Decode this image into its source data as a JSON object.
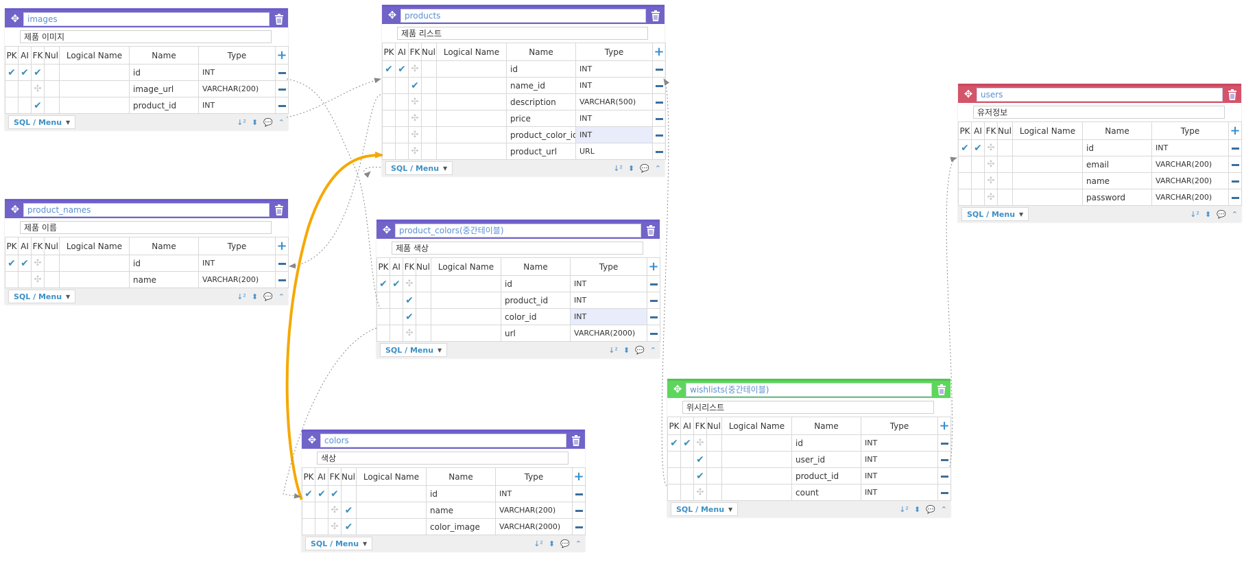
{
  "ui": {
    "sql_menu_label": "SQL / Menu",
    "col_headers": {
      "pk": "PK",
      "ai": "AI",
      "fk": "FK",
      "null": "Null",
      "logical": "Logical Name",
      "name": "Name",
      "type": "Type"
    },
    "colors": {
      "purple": "#7064c8",
      "red": "#d4546a",
      "green": "#5ed65e",
      "relation_line": "#888888",
      "highlight_link": "#f6a800"
    }
  },
  "tables": {
    "images": {
      "name": "images",
      "comment": "제품 이미지",
      "theme": "purple",
      "columns": [
        {
          "name": "id",
          "type": "INT",
          "pk": true,
          "ai": true,
          "fk": true,
          "null": false,
          "fk_ghost": false
        },
        {
          "name": "image_url",
          "type": "VARCHAR(200)",
          "pk": false,
          "ai": false,
          "fk": false,
          "null": false,
          "fk_ghost": true
        },
        {
          "name": "product_id",
          "type": "INT",
          "pk": false,
          "ai": false,
          "fk": true,
          "null": false,
          "fk_ghost": false
        }
      ]
    },
    "product_names": {
      "name": "product_names",
      "comment": "제품 이름",
      "theme": "purple",
      "columns": [
        {
          "name": "id",
          "type": "INT",
          "pk": true,
          "ai": true,
          "fk": false,
          "null": false,
          "fk_ghost": true
        },
        {
          "name": "name",
          "type": "VARCHAR(200)",
          "pk": false,
          "ai": false,
          "fk": false,
          "null": false,
          "fk_ghost": true
        }
      ]
    },
    "products": {
      "name": "products",
      "comment": "제품 리스트",
      "theme": "purple",
      "columns": [
        {
          "name": "id",
          "type": "INT",
          "pk": true,
          "ai": true,
          "fk": false,
          "null": false,
          "fk_ghost": true
        },
        {
          "name": "name_id",
          "type": "INT",
          "pk": false,
          "ai": false,
          "fk": true,
          "null": false,
          "fk_ghost": false
        },
        {
          "name": "description",
          "type": "VARCHAR(500)",
          "pk": false,
          "ai": false,
          "fk": false,
          "null": false,
          "fk_ghost": true
        },
        {
          "name": "price",
          "type": "INT",
          "pk": false,
          "ai": false,
          "fk": false,
          "null": false,
          "fk_ghost": true
        },
        {
          "name": "product_color_id",
          "type": "INT",
          "pk": false,
          "ai": false,
          "fk": false,
          "null": false,
          "fk_ghost": true,
          "highlight": true
        },
        {
          "name": "product_url",
          "type": "URL",
          "pk": false,
          "ai": false,
          "fk": false,
          "null": false,
          "fk_ghost": true
        }
      ]
    },
    "product_colors": {
      "name": "product_colors(중간테이블)",
      "comment": "제품 색상",
      "theme": "purple",
      "columns": [
        {
          "name": "id",
          "type": "INT",
          "pk": true,
          "ai": true,
          "fk": false,
          "null": false,
          "fk_ghost": true
        },
        {
          "name": "product_id",
          "type": "INT",
          "pk": false,
          "ai": false,
          "fk": true,
          "null": false,
          "fk_ghost": false
        },
        {
          "name": "color_id",
          "type": "INT",
          "pk": false,
          "ai": false,
          "fk": true,
          "null": false,
          "fk_ghost": false,
          "highlight": true
        },
        {
          "name": "url",
          "type": "VARCHAR(2000)",
          "pk": false,
          "ai": false,
          "fk": false,
          "null": false,
          "fk_ghost": true
        }
      ]
    },
    "colors": {
      "name": "colors",
      "comment": "색상",
      "theme": "purple",
      "columns": [
        {
          "name": "id",
          "type": "INT",
          "pk": true,
          "ai": true,
          "fk": true,
          "null": false,
          "fk_ghost": false
        },
        {
          "name": "name",
          "type": "VARCHAR(200)",
          "pk": false,
          "ai": false,
          "fk": false,
          "null": true,
          "fk_ghost": true
        },
        {
          "name": "color_image",
          "type": "VARCHAR(2000)",
          "pk": false,
          "ai": false,
          "fk": false,
          "null": true,
          "fk_ghost": true
        }
      ]
    },
    "users": {
      "name": "users",
      "comment": "유저정보",
      "theme": "red",
      "columns": [
        {
          "name": "id",
          "type": "INT",
          "pk": true,
          "ai": true,
          "fk": false,
          "null": false,
          "fk_ghost": true
        },
        {
          "name": "email",
          "type": "VARCHAR(200)",
          "pk": false,
          "ai": false,
          "fk": false,
          "null": false,
          "fk_ghost": true
        },
        {
          "name": "name",
          "type": "VARCHAR(200)",
          "pk": false,
          "ai": false,
          "fk": false,
          "null": false,
          "fk_ghost": true
        },
        {
          "name": "password",
          "type": "VARCHAR(200)",
          "pk": false,
          "ai": false,
          "fk": false,
          "null": false,
          "fk_ghost": true
        }
      ]
    },
    "wishlists": {
      "name": "wishlists(중간테이블)",
      "comment": "위시리스트",
      "theme": "green",
      "columns": [
        {
          "name": "id",
          "type": "INT",
          "pk": true,
          "ai": true,
          "fk": false,
          "null": false,
          "fk_ghost": true
        },
        {
          "name": "user_id",
          "type": "INT",
          "pk": false,
          "ai": false,
          "fk": true,
          "null": false,
          "fk_ghost": false
        },
        {
          "name": "product_id",
          "type": "INT",
          "pk": false,
          "ai": false,
          "fk": true,
          "null": false,
          "fk_ghost": false
        },
        {
          "name": "count",
          "type": "INT",
          "pk": false,
          "ai": false,
          "fk": false,
          "null": false,
          "fk_ghost": true
        }
      ]
    }
  }
}
